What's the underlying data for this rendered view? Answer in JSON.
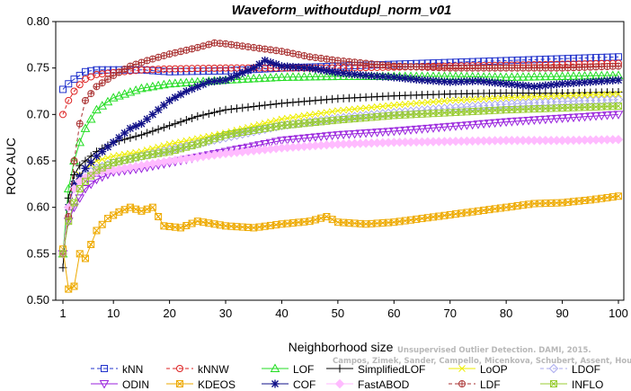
{
  "chart_data": {
    "type": "line",
    "title": "Waveform_withoutdupl_norm_v01",
    "xlabel": "Neighborhood size",
    "ylabel": "ROC AUC",
    "xlim": [
      1,
      100
    ],
    "ylim": [
      0.5,
      0.8
    ],
    "xticks": [
      1,
      10,
      20,
      30,
      40,
      50,
      60,
      70,
      80,
      90,
      100
    ],
    "yticks": [
      0.5,
      0.55,
      0.6,
      0.65,
      0.7,
      0.75,
      0.8
    ],
    "grid": false,
    "legend_position": "bottom",
    "series": [
      {
        "name": "kNN",
        "color": "#2233cc",
        "marker": "square",
        "dash": "4,3",
        "points": [
          [
            1,
            0.727
          ],
          [
            2,
            0.733
          ],
          [
            3,
            0.738
          ],
          [
            4,
            0.742
          ],
          [
            5,
            0.746
          ],
          [
            7,
            0.748
          ],
          [
            10,
            0.748
          ],
          [
            15,
            0.748
          ],
          [
            20,
            0.746
          ],
          [
            30,
            0.747
          ],
          [
            40,
            0.75
          ],
          [
            50,
            0.752
          ],
          [
            60,
            0.754
          ],
          [
            70,
            0.756
          ],
          [
            80,
            0.758
          ],
          [
            90,
            0.76
          ],
          [
            100,
            0.762
          ]
        ]
      },
      {
        "name": "kNNW",
        "color": "#dd2222",
        "marker": "circle",
        "dash": "4,3",
        "points": [
          [
            1,
            0.7
          ],
          [
            2,
            0.715
          ],
          [
            3,
            0.725
          ],
          [
            4,
            0.732
          ],
          [
            5,
            0.738
          ],
          [
            7,
            0.743
          ],
          [
            10,
            0.745
          ],
          [
            15,
            0.748
          ],
          [
            20,
            0.749
          ],
          [
            30,
            0.75
          ],
          [
            40,
            0.75
          ],
          [
            50,
            0.75
          ],
          [
            60,
            0.751
          ],
          [
            70,
            0.752
          ],
          [
            80,
            0.753
          ],
          [
            90,
            0.754
          ],
          [
            100,
            0.755
          ]
        ]
      },
      {
        "name": "LOF",
        "color": "#22dd22",
        "marker": "triangle-up",
        "dash": "",
        "points": [
          [
            1,
            0.55
          ],
          [
            2,
            0.62
          ],
          [
            3,
            0.65
          ],
          [
            4,
            0.67
          ],
          [
            5,
            0.685
          ],
          [
            7,
            0.705
          ],
          [
            10,
            0.718
          ],
          [
            15,
            0.728
          ],
          [
            20,
            0.733
          ],
          [
            30,
            0.737
          ],
          [
            40,
            0.74
          ],
          [
            50,
            0.741
          ],
          [
            60,
            0.741
          ],
          [
            70,
            0.741
          ],
          [
            80,
            0.74
          ],
          [
            90,
            0.741
          ],
          [
            100,
            0.742
          ]
        ]
      },
      {
        "name": "SimplifiedLOF",
        "color": "#000000",
        "marker": "plus",
        "dash": "",
        "points": [
          [
            1,
            0.535
          ],
          [
            2,
            0.61
          ],
          [
            3,
            0.635
          ],
          [
            4,
            0.645
          ],
          [
            5,
            0.65
          ],
          [
            7,
            0.66
          ],
          [
            10,
            0.67
          ],
          [
            15,
            0.678
          ],
          [
            20,
            0.688
          ],
          [
            25,
            0.698
          ],
          [
            30,
            0.705
          ],
          [
            40,
            0.712
          ],
          [
            50,
            0.717
          ],
          [
            60,
            0.72
          ],
          [
            70,
            0.722
          ],
          [
            80,
            0.723
          ],
          [
            90,
            0.723
          ],
          [
            100,
            0.724
          ]
        ]
      },
      {
        "name": "LoOP",
        "color": "#eeee00",
        "marker": "cross",
        "dash": "",
        "points": [
          [
            1,
            0.55
          ],
          [
            2,
            0.6
          ],
          [
            3,
            0.625
          ],
          [
            4,
            0.635
          ],
          [
            5,
            0.642
          ],
          [
            7,
            0.65
          ],
          [
            10,
            0.655
          ],
          [
            15,
            0.66
          ],
          [
            20,
            0.668
          ],
          [
            30,
            0.68
          ],
          [
            40,
            0.695
          ],
          [
            50,
            0.704
          ],
          [
            60,
            0.71
          ],
          [
            70,
            0.715
          ],
          [
            80,
            0.718
          ],
          [
            90,
            0.72
          ],
          [
            100,
            0.722
          ]
        ]
      },
      {
        "name": "LDOF",
        "color": "#aaaaee",
        "marker": "diamond",
        "dash": "4,3",
        "points": [
          [
            1,
            0.55
          ],
          [
            2,
            0.6
          ],
          [
            3,
            0.62
          ],
          [
            4,
            0.63
          ],
          [
            5,
            0.635
          ],
          [
            7,
            0.642
          ],
          [
            10,
            0.648
          ],
          [
            15,
            0.655
          ],
          [
            20,
            0.662
          ],
          [
            30,
            0.675
          ],
          [
            40,
            0.688
          ],
          [
            50,
            0.696
          ],
          [
            60,
            0.702
          ],
          [
            70,
            0.707
          ],
          [
            80,
            0.711
          ],
          [
            90,
            0.714
          ],
          [
            100,
            0.716
          ]
        ]
      },
      {
        "name": "ODIN",
        "color": "#9922dd",
        "marker": "triangle-down",
        "dash": "",
        "points": [
          [
            1,
            0.55
          ],
          [
            2,
            0.585
          ],
          [
            3,
            0.6
          ],
          [
            4,
            0.61
          ],
          [
            5,
            0.62
          ],
          [
            7,
            0.63
          ],
          [
            10,
            0.638
          ],
          [
            15,
            0.642
          ],
          [
            20,
            0.648
          ],
          [
            30,
            0.66
          ],
          [
            40,
            0.672
          ],
          [
            50,
            0.678
          ],
          [
            60,
            0.682
          ],
          [
            70,
            0.687
          ],
          [
            80,
            0.692
          ],
          [
            90,
            0.696
          ],
          [
            100,
            0.7
          ]
        ]
      },
      {
        "name": "KDEOS",
        "color": "#eeaa00",
        "marker": "square-x",
        "dash": "",
        "points": [
          [
            1,
            0.555
          ],
          [
            2,
            0.512
          ],
          [
            3,
            0.515
          ],
          [
            4,
            0.55
          ],
          [
            5,
            0.545
          ],
          [
            7,
            0.575
          ],
          [
            9,
            0.588
          ],
          [
            11,
            0.595
          ],
          [
            13,
            0.6
          ],
          [
            15,
            0.596
          ],
          [
            17,
            0.6
          ],
          [
            19,
            0.58
          ],
          [
            22,
            0.578
          ],
          [
            25,
            0.585
          ],
          [
            30,
            0.58
          ],
          [
            35,
            0.578
          ],
          [
            40,
            0.582
          ],
          [
            45,
            0.585
          ],
          [
            48,
            0.59
          ],
          [
            50,
            0.584
          ],
          [
            55,
            0.582
          ],
          [
            60,
            0.584
          ],
          [
            65,
            0.588
          ],
          [
            70,
            0.592
          ],
          [
            75,
            0.596
          ],
          [
            80,
            0.6
          ],
          [
            85,
            0.604
          ],
          [
            90,
            0.605
          ],
          [
            95,
            0.608
          ],
          [
            100,
            0.612
          ]
        ]
      },
      {
        "name": "COF",
        "color": "#111188",
        "marker": "star",
        "dash": "",
        "points": [
          [
            1,
            0.55
          ],
          [
            2,
            0.6
          ],
          [
            3,
            0.625
          ],
          [
            5,
            0.642
          ],
          [
            7,
            0.655
          ],
          [
            10,
            0.67
          ],
          [
            13,
            0.685
          ],
          [
            15,
            0.69
          ],
          [
            18,
            0.705
          ],
          [
            20,
            0.715
          ],
          [
            23,
            0.725
          ],
          [
            27,
            0.735
          ],
          [
            30,
            0.737
          ],
          [
            35,
            0.75
          ],
          [
            37,
            0.758
          ],
          [
            40,
            0.752
          ],
          [
            45,
            0.75
          ],
          [
            50,
            0.745
          ],
          [
            55,
            0.742
          ],
          [
            60,
            0.74
          ],
          [
            65,
            0.737
          ],
          [
            70,
            0.735
          ],
          [
            75,
            0.736
          ],
          [
            80,
            0.733
          ],
          [
            85,
            0.73
          ],
          [
            90,
            0.733
          ],
          [
            95,
            0.735
          ],
          [
            100,
            0.737
          ]
        ]
      },
      {
        "name": "FastABOD",
        "color": "#ffbbff",
        "marker": "diamond-filled",
        "dash": "",
        "points": [
          [
            1,
            0.55
          ],
          [
            2,
            0.6
          ],
          [
            3,
            0.62
          ],
          [
            4,
            0.628
          ],
          [
            5,
            0.632
          ],
          [
            7,
            0.638
          ],
          [
            10,
            0.64
          ],
          [
            15,
            0.645
          ],
          [
            20,
            0.65
          ],
          [
            30,
            0.658
          ],
          [
            40,
            0.664
          ],
          [
            50,
            0.668
          ],
          [
            60,
            0.67
          ],
          [
            70,
            0.671
          ],
          [
            80,
            0.672
          ],
          [
            90,
            0.672
          ],
          [
            100,
            0.673
          ]
        ]
      },
      {
        "name": "LDF",
        "color": "#aa3333",
        "marker": "circle-plus",
        "dash": "4,3",
        "points": [
          [
            1,
            0.55
          ],
          [
            2,
            0.59
          ],
          [
            3,
            0.65
          ],
          [
            4,
            0.69
          ],
          [
            5,
            0.715
          ],
          [
            7,
            0.73
          ],
          [
            10,
            0.742
          ],
          [
            13,
            0.752
          ],
          [
            16,
            0.758
          ],
          [
            20,
            0.765
          ],
          [
            25,
            0.772
          ],
          [
            28,
            0.777
          ],
          [
            30,
            0.776
          ],
          [
            35,
            0.772
          ],
          [
            40,
            0.768
          ],
          [
            45,
            0.762
          ],
          [
            50,
            0.758
          ],
          [
            55,
            0.755
          ],
          [
            60,
            0.752
          ],
          [
            70,
            0.75
          ],
          [
            80,
            0.75
          ],
          [
            90,
            0.75
          ],
          [
            100,
            0.752
          ]
        ]
      },
      {
        "name": "INFLO",
        "color": "#99cc33",
        "marker": "square-x",
        "dash": "",
        "points": [
          [
            1,
            0.55
          ],
          [
            2,
            0.585
          ],
          [
            3,
            0.605
          ],
          [
            4,
            0.62
          ],
          [
            5,
            0.628
          ],
          [
            7,
            0.64
          ],
          [
            10,
            0.648
          ],
          [
            15,
            0.655
          ],
          [
            20,
            0.66
          ],
          [
            25,
            0.668
          ],
          [
            30,
            0.678
          ],
          [
            40,
            0.688
          ],
          [
            50,
            0.694
          ],
          [
            60,
            0.699
          ],
          [
            70,
            0.702
          ],
          [
            80,
            0.705
          ],
          [
            90,
            0.707
          ],
          [
            100,
            0.709
          ]
        ]
      }
    ]
  },
  "watermark": {
    "line1": "Unsupervised Outlier Detection. DAMI, 2015.",
    "line2": "Campos, Zimek, Sander, Campello, Micenkova, Schubert, Assent, Houle"
  }
}
